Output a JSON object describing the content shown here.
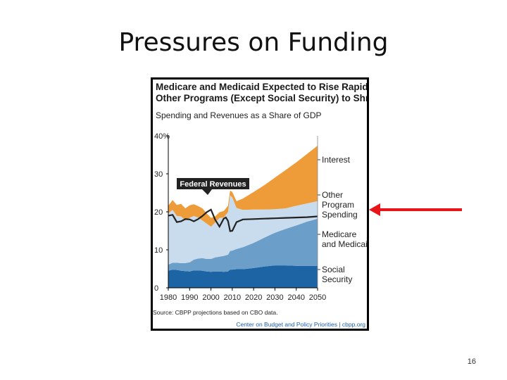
{
  "slide": {
    "title": "Pressures on Funding",
    "page_number": "16"
  },
  "figure": {
    "title_line1": "Medicare and Medicaid Expected to Rise Rapidly,",
    "title_line2": "Other Programs (Except Social Security) to Shrink",
    "subtitle": "Spending and Revenues as a Share of GDP",
    "source": "Source: CBPP projections based on CBO data.",
    "credit": "Center on Budget and Policy Priorities | cbpp.org"
  },
  "colors": {
    "interest": "#ee9c3a",
    "other_program_spending": "#c9dcee",
    "medicare_medicaid": "#6b9ec8",
    "social_security": "#1d64a5",
    "federal_revenues": "#222222",
    "arrow": "#e8141a"
  },
  "chart_data": {
    "type": "area",
    "title": "Medicare and Medicaid Expected to Rise Rapidly, Other Programs (Except Social Security) to Shrink",
    "subtitle": "Spending and Revenues as a Share of GDP",
    "xlabel": "",
    "ylabel": "",
    "stacked": true,
    "x": [
      1980,
      1982,
      1984,
      1986,
      1988,
      1990,
      1992,
      1994,
      1996,
      1998,
      2000,
      2002,
      2004,
      2006,
      2008,
      2009,
      2010,
      2012,
      2015,
      2020,
      2025,
      2030,
      2035,
      2040,
      2045,
      2050
    ],
    "xlim": [
      1980,
      2050
    ],
    "ylim": [
      0,
      40
    ],
    "x_ticks": [
      "1980",
      "1990",
      "2000",
      "2010",
      "2020",
      "2030",
      "2040",
      "2050"
    ],
    "y_ticks": [
      "0",
      "10",
      "20",
      "30",
      "40%"
    ],
    "series": [
      {
        "name": "Social Security",
        "values": [
          4.5,
          4.8,
          4.7,
          4.5,
          4.4,
          4.3,
          4.6,
          4.6,
          4.5,
          4.3,
          4.2,
          4.3,
          4.3,
          4.2,
          4.3,
          4.8,
          4.8,
          4.9,
          4.9,
          5.2,
          5.6,
          5.9,
          5.9,
          5.8,
          5.8,
          5.8
        ]
      },
      {
        "name": "Medicare and Medicaid",
        "values": [
          1.6,
          1.8,
          1.9,
          2.0,
          2.1,
          2.4,
          2.8,
          3.1,
          3.3,
          3.3,
          3.4,
          3.7,
          3.9,
          4.2,
          4.4,
          4.9,
          5.0,
          5.3,
          5.8,
          6.6,
          7.6,
          8.6,
          9.6,
          10.6,
          11.6,
          12.4
        ]
      },
      {
        "name": "Other Program Spending",
        "values": [
          13.5,
          13.9,
          12.3,
          12.3,
          11.2,
          11.7,
          11.5,
          10.8,
          9.9,
          9.3,
          8.5,
          9.2,
          10.2,
          10.1,
          11.2,
          14.6,
          14.0,
          10.8,
          9.8,
          8.8,
          7.4,
          6.2,
          5.4,
          5.2,
          4.8,
          4.6
        ]
      },
      {
        "name": "Interest",
        "values": [
          2.0,
          2.6,
          2.9,
          3.3,
          3.2,
          3.3,
          3.1,
          3.0,
          3.2,
          2.7,
          2.3,
          1.6,
          1.5,
          1.7,
          1.7,
          1.3,
          1.4,
          1.8,
          3.0,
          4.6,
          6.4,
          8.3,
          10.1,
          11.4,
          13.0,
          14.6
        ]
      }
    ],
    "line": {
      "name": "Federal Revenues",
      "x": [
        1980,
        1982,
        1984,
        1986,
        1988,
        1990,
        1992,
        1994,
        1996,
        1998,
        2000,
        2002,
        2004,
        2006,
        2007,
        2008,
        2009,
        2010,
        2012,
        2015,
        2020,
        2025,
        2030,
        2035,
        2040,
        2045,
        2050
      ],
      "values": [
        19.0,
        19.2,
        17.3,
        17.5,
        18.1,
        18.0,
        17.5,
        18.1,
        18.9,
        19.9,
        20.6,
        17.9,
        16.1,
        18.2,
        18.5,
        17.6,
        14.9,
        15.0,
        17.3,
        18.0,
        18.1,
        18.2,
        18.3,
        18.4,
        18.5,
        18.6,
        18.8
      ]
    },
    "legend": "right"
  }
}
